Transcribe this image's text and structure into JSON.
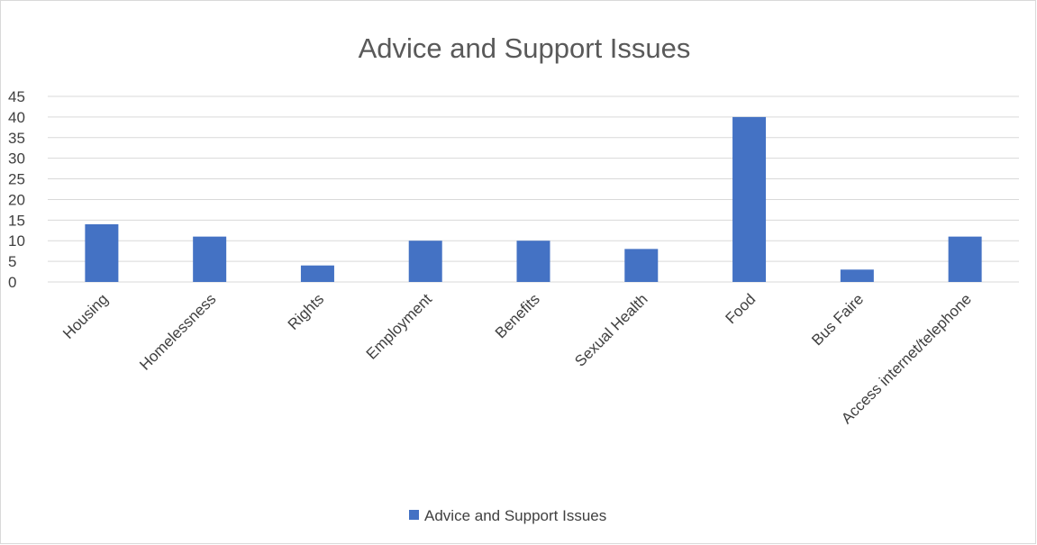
{
  "chart_data": {
    "type": "bar",
    "title": "Advice and Support Issues",
    "categories": [
      "Housing",
      "Homelessness",
      "Rights",
      "Employment",
      "Benefits",
      "Sexual Health",
      "Food",
      "Bus Faire",
      "Access internet/telephone"
    ],
    "series": [
      {
        "name": "Advice and Support Issues",
        "values": [
          14,
          11,
          4,
          10,
          10,
          8,
          40,
          3,
          11
        ],
        "color": "#4472c4"
      }
    ],
    "y_ticks": [
      "0",
      "5",
      "10",
      "15",
      "20",
      "25",
      "30",
      "35",
      "40",
      "45"
    ],
    "ylim": [
      0,
      45
    ],
    "xlabel": "",
    "ylabel": "",
    "grid": true,
    "gridline_color": "#d9d9d9",
    "legend_position": "bottom"
  }
}
